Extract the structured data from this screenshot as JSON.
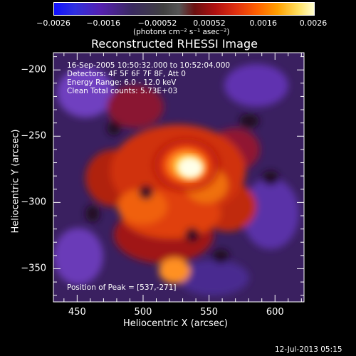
{
  "chart_data": {
    "type": "heatmap",
    "title": "Reconstructed RHESSI Image",
    "xlabel": "Heliocentric X (arcsec)",
    "ylabel": "Heliocentric Y (arcsec)",
    "xlim": [
      432,
      622
    ],
    "ylim": [
      -375,
      -187
    ],
    "x_ticks": [
      "450",
      "500",
      "550",
      "600"
    ],
    "x_tick_values": [
      450,
      500,
      550,
      600
    ],
    "y_ticks": [
      "-200",
      "-250",
      "-300",
      "-350"
    ],
    "y_tick_values": [
      -200,
      -250,
      -300,
      -350
    ],
    "colorbar": {
      "ticks": [
        "-0.0026",
        "-0.0016",
        "-0.00052",
        "0.00052",
        "0.0016",
        "0.0026"
      ],
      "tick_values": [
        -0.0026,
        -0.0016,
        -0.00052,
        0.00052,
        0.0016,
        0.0026
      ],
      "label": "(photons cm⁻² s⁻¹ asec⁻²)",
      "range": [
        -0.0026,
        0.0026
      ]
    },
    "annotations": {
      "time_range": "16-Sep-2005 10:50:32.000 to 10:52:04.000",
      "detectors": "Detectors: 4F 5F 6F 7F 8F, Att 0",
      "energy": "Energy Range: 6.0 - 12.0 keV",
      "clean": "Clean      Total counts: 5.73E+03",
      "peak": "Position of Peak = [537,-271]"
    },
    "peak": {
      "x": 537,
      "y": -271
    },
    "grid": false
  },
  "footer": {
    "timestamp": "12-Jul-2013 05:15"
  }
}
